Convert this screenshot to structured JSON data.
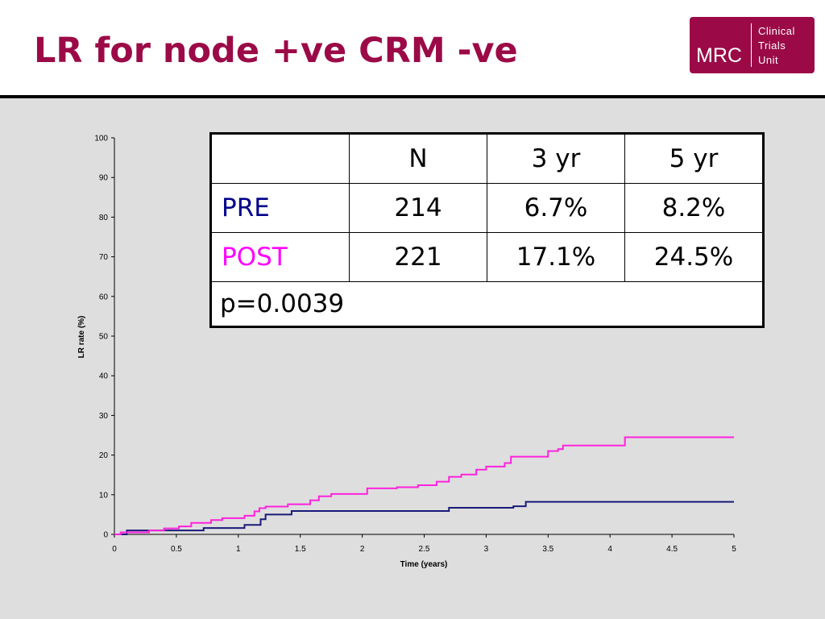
{
  "slide": {
    "title": "LR for node +ve CRM -ve",
    "logo": {
      "mark": "MRC",
      "lines": [
        "Clinical",
        "Trials",
        "Unit"
      ]
    }
  },
  "table": {
    "headers": [
      "",
      "N",
      "3 yr",
      "5 yr"
    ],
    "rows": [
      {
        "label": "PRE",
        "label_color": "#00008b",
        "n": "214",
        "yr3": "6.7%",
        "yr5": "8.2%"
      },
      {
        "label": "POST",
        "label_color": "#ff00ff",
        "n": "221",
        "yr3": "17.1%",
        "yr5": "24.5%"
      }
    ],
    "footer": "p=0.0039"
  },
  "chart_data": {
    "type": "line",
    "title": "",
    "xlabel": "Time (years)",
    "ylabel": "LR rate (%)",
    "xlim": [
      0,
      5
    ],
    "ylim": [
      0,
      100
    ],
    "x_ticks": [
      "0",
      "0.5",
      "1",
      "1.5",
      "2",
      "2.5",
      "3",
      "3.5",
      "4",
      "4.5",
      "5"
    ],
    "y_ticks": [
      "0",
      "10",
      "20",
      "30",
      "40",
      "50",
      "60",
      "70",
      "80",
      "90",
      "100"
    ],
    "grid": false,
    "step": true,
    "series": [
      {
        "name": "PRE",
        "color": "#1a1a7a",
        "x": [
          0,
          0.1,
          0.72,
          1.05,
          1.18,
          1.22,
          1.43,
          2.7,
          3.22,
          3.32,
          5.0
        ],
        "y": [
          0,
          1.0,
          1.6,
          2.4,
          3.8,
          5.0,
          5.9,
          6.7,
          7.1,
          8.2,
          8.2
        ]
      },
      {
        "name": "POST",
        "color": "#ff22dd",
        "x": [
          0,
          0.05,
          0.28,
          0.4,
          0.52,
          0.62,
          0.78,
          0.87,
          1.05,
          1.13,
          1.17,
          1.22,
          1.4,
          1.58,
          1.65,
          1.75,
          2.04,
          2.28,
          2.45,
          2.6,
          2.7,
          2.8,
          2.92,
          3.0,
          3.15,
          3.2,
          3.5,
          3.58,
          3.62,
          4.12,
          4.2,
          5.0
        ],
        "y": [
          0,
          0.5,
          1.0,
          1.5,
          2.0,
          2.9,
          3.6,
          4.1,
          4.7,
          5.8,
          6.6,
          7.0,
          7.6,
          8.6,
          9.6,
          10.2,
          11.6,
          11.9,
          12.4,
          13.3,
          14.5,
          15.1,
          16.3,
          17.1,
          18.0,
          19.6,
          21.0,
          21.5,
          22.4,
          24.5,
          24.5,
          24.5
        ]
      }
    ]
  }
}
